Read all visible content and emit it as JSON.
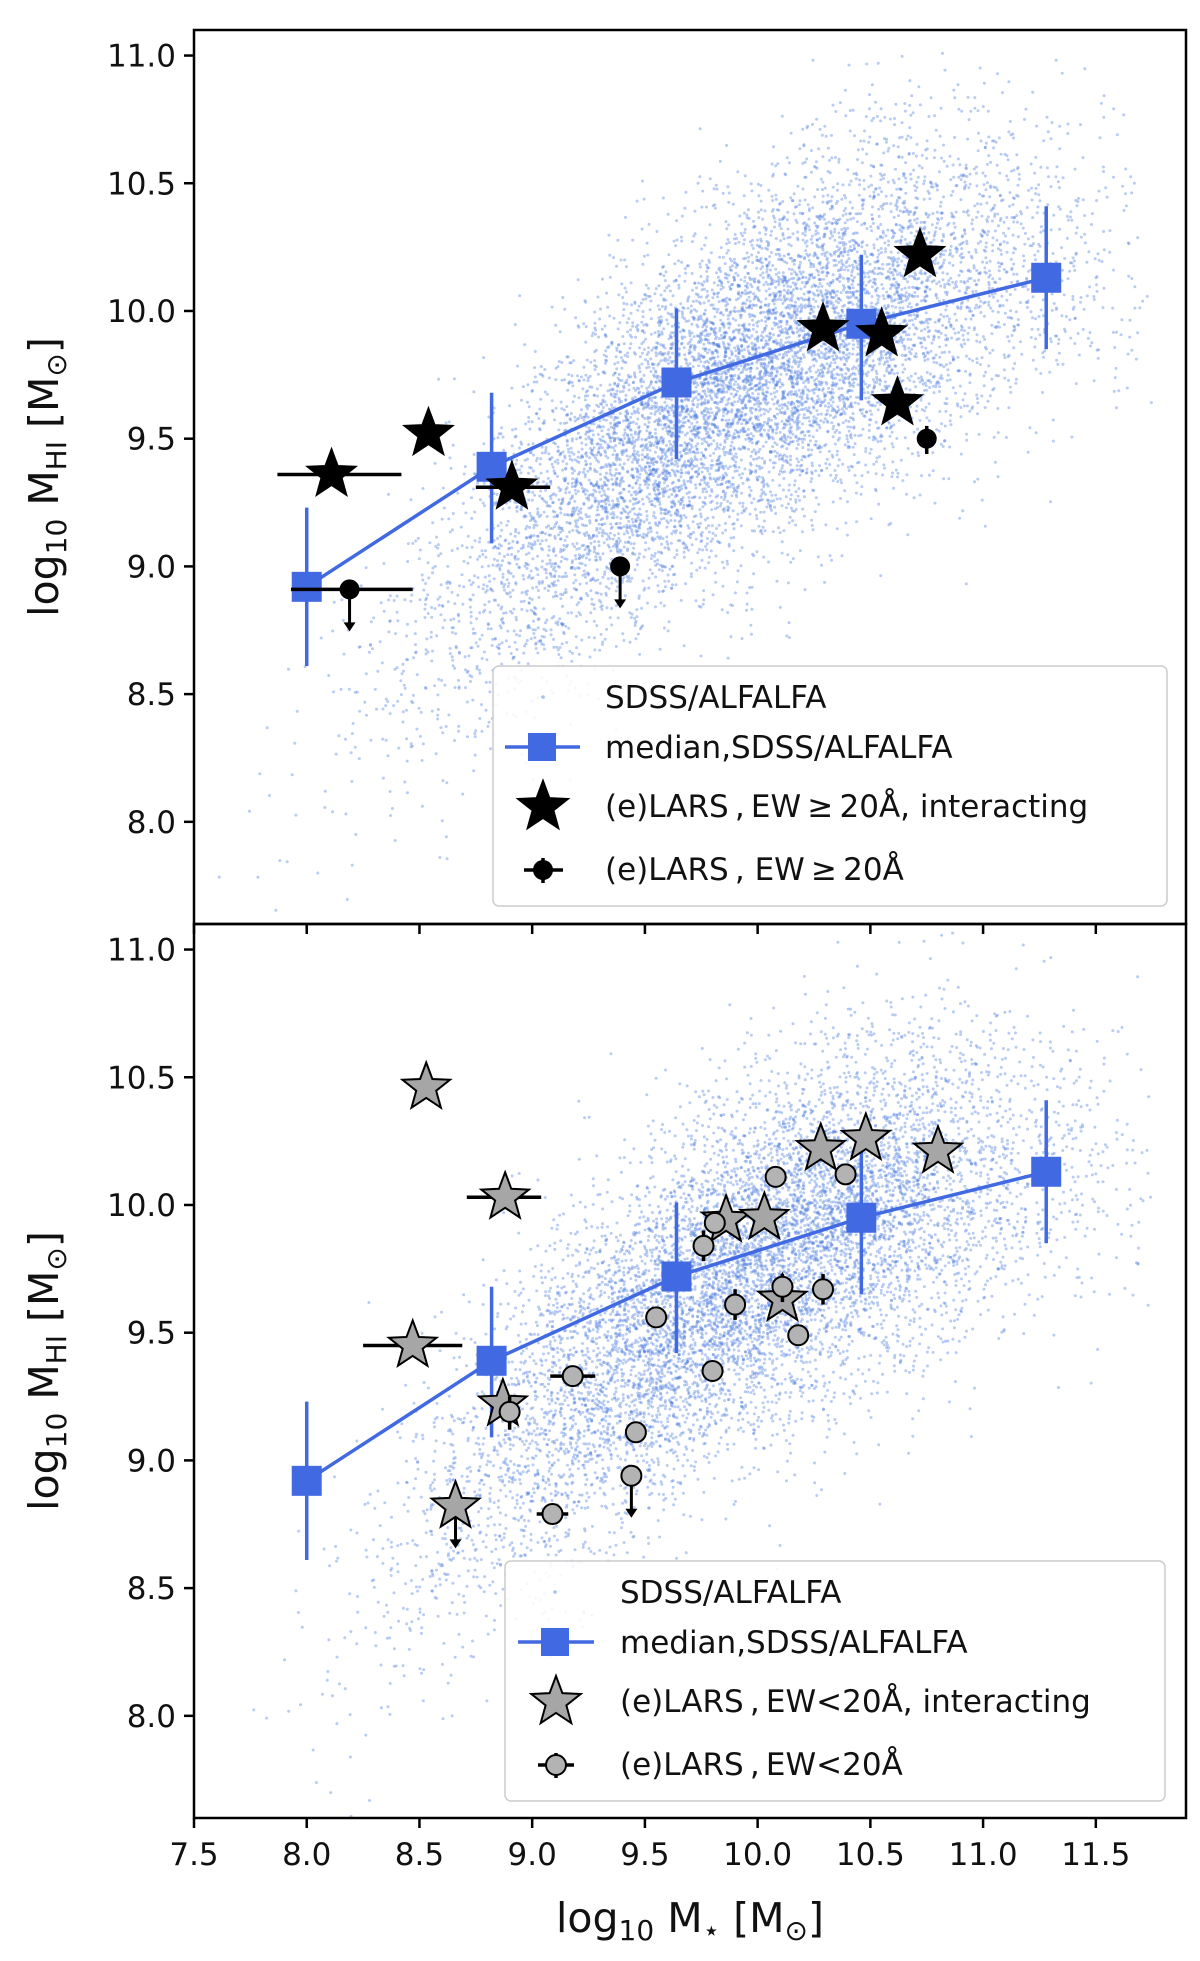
{
  "chart_data": [
    {
      "type": "scatter",
      "panel": "top",
      "xlim": [
        7.5,
        11.9
      ],
      "ylim": [
        7.6,
        11.1
      ],
      "xticks": [
        7.5,
        8.0,
        8.5,
        9.0,
        9.5,
        10.0,
        10.5,
        11.0,
        11.5
      ],
      "yticks": [
        8.0,
        8.5,
        9.0,
        9.5,
        10.0,
        10.5,
        11.0
      ],
      "ytick_labels": [
        "8.0",
        "8.5",
        "9.0",
        "9.5",
        "10.0",
        "10.5",
        "11.0"
      ],
      "ylabel": {
        "main": "log",
        "sub1": "10",
        "mid": " M",
        "sub2": "HI",
        "unit": " [M",
        "unit_sub": "⊙",
        "close": "]"
      },
      "legend": {
        "position": "lower-right",
        "entries": [
          {
            "label": "SDSS/ALFALFA",
            "marker": "dot"
          },
          {
            "label": "median,SDSS/ALFALFA",
            "marker": "square-line"
          },
          {
            "label": "(e)LARS , EW ≥ 20Å,  interacting",
            "marker": "star"
          },
          {
            "label": "(e)LARS , EW ≥ 20Å",
            "marker": "circle-errorbar"
          }
        ]
      },
      "series": [
        {
          "name": "SDSS/ALFALFA",
          "kind": "background-cloud",
          "color": "#4f7fdf",
          "n_points": 9000
        },
        {
          "name": "median,SDSS/ALFALFA",
          "color": "#4169e1",
          "x": [
            8.0,
            8.82,
            9.64,
            10.46,
            11.28
          ],
          "y": [
            8.92,
            9.39,
            9.72,
            9.95,
            10.13
          ],
          "yerr_low": [
            8.61,
            9.09,
            9.42,
            9.65,
            9.85
          ],
          "yerr_high": [
            9.23,
            9.68,
            10.01,
            10.22,
            10.41
          ]
        },
        {
          "name": "(e)LARS, EW ≥ 20Å, interacting",
          "marker": "star",
          "color": "#000000",
          "points": [
            {
              "x": 8.11,
              "y": 9.36,
              "xerr": [
                7.87,
                8.42
              ]
            },
            {
              "x": 8.54,
              "y": 9.52
            },
            {
              "x": 8.91,
              "y": 9.31,
              "xerr": [
                8.75,
                9.08
              ]
            },
            {
              "x": 10.29,
              "y": 9.93
            },
            {
              "x": 10.55,
              "y": 9.91
            },
            {
              "x": 10.62,
              "y": 9.64
            },
            {
              "x": 10.72,
              "y": 10.22
            }
          ]
        },
        {
          "name": "(e)LARS, EW ≥ 20Å",
          "marker": "circle",
          "color": "#000000",
          "points": [
            {
              "x": 8.19,
              "y": 8.91,
              "xerr": [
                7.93,
                8.47
              ],
              "upper_limit": true
            },
            {
              "x": 9.39,
              "y": 9.0,
              "upper_limit": true
            },
            {
              "x": 10.75,
              "y": 9.5,
              "yerr": [
                9.44,
                9.55
              ]
            }
          ]
        }
      ]
    },
    {
      "type": "scatter",
      "panel": "bottom",
      "xlim": [
        7.5,
        11.9
      ],
      "ylim": [
        7.6,
        11.1
      ],
      "xticks": [
        7.5,
        8.0,
        8.5,
        9.0,
        9.5,
        10.0,
        10.5,
        11.0,
        11.5
      ],
      "xtick_labels": [
        "7.5",
        "8.0",
        "8.5",
        "9.0",
        "9.5",
        "10.0",
        "10.5",
        "11.0",
        "11.5"
      ],
      "yticks": [
        8.0,
        8.5,
        9.0,
        9.5,
        10.0,
        10.5,
        11.0
      ],
      "ytick_labels": [
        "8.0",
        "8.5",
        "9.0",
        "9.5",
        "10.0",
        "10.5",
        "11.0"
      ],
      "xlabel": {
        "main": "log",
        "sub1": "10",
        "mid": " M",
        "sub2": "⋆",
        "unit": "  [M",
        "unit_sub": "⊙",
        "close": "]"
      },
      "ylabel": {
        "main": "log",
        "sub1": "10",
        "mid": " M",
        "sub2": "HI",
        "unit": " [M",
        "unit_sub": "⊙",
        "close": "]"
      },
      "legend": {
        "position": "lower-right",
        "entries": [
          {
            "label": "SDSS/ALFALFA",
            "marker": "dot"
          },
          {
            "label": "median,SDSS/ALFALFA",
            "marker": "square-line"
          },
          {
            "label": "(e)LARS , EW<20Å,  interacting",
            "marker": "star"
          },
          {
            "label": "(e)LARS , EW<20Å",
            "marker": "circle-errorbar"
          }
        ]
      },
      "series": [
        {
          "name": "SDSS/ALFALFA",
          "kind": "background-cloud",
          "color": "#4f7fdf",
          "n_points": 9000
        },
        {
          "name": "median,SDSS/ALFALFA",
          "color": "#4169e1",
          "x": [
            8.0,
            8.82,
            9.64,
            10.46,
            11.28
          ],
          "y": [
            8.92,
            9.39,
            9.72,
            9.95,
            10.13
          ],
          "yerr_low": [
            8.61,
            9.09,
            9.42,
            9.65,
            9.85
          ],
          "yerr_high": [
            9.23,
            9.68,
            10.01,
            10.22,
            10.41
          ]
        },
        {
          "name": "(e)LARS, EW<20Å, interacting",
          "marker": "star",
          "color": "#a6a6a6",
          "points": [
            {
              "x": 8.53,
              "y": 10.46
            },
            {
              "x": 8.88,
              "y": 10.03,
              "xerr": [
                8.71,
                9.04
              ]
            },
            {
              "x": 8.47,
              "y": 9.45,
              "xerr": [
                8.25,
                8.69
              ]
            },
            {
              "x": 8.87,
              "y": 9.22
            },
            {
              "x": 8.66,
              "y": 8.82,
              "upper_limit": true
            },
            {
              "x": 9.86,
              "y": 9.94
            },
            {
              "x": 10.03,
              "y": 9.95
            },
            {
              "x": 10.28,
              "y": 10.22
            },
            {
              "x": 10.48,
              "y": 10.26
            },
            {
              "x": 10.8,
              "y": 10.21
            },
            {
              "x": 10.11,
              "y": 9.63
            }
          ]
        },
        {
          "name": "(e)LARS, EW<20Å",
          "marker": "circle",
          "color": "#b3b3b3",
          "points": [
            {
              "x": 9.76,
              "y": 9.84,
              "yerr": [
                9.78,
                9.9
              ]
            },
            {
              "x": 9.81,
              "y": 9.93
            },
            {
              "x": 10.08,
              "y": 10.11
            },
            {
              "x": 10.39,
              "y": 10.12
            },
            {
              "x": 9.55,
              "y": 9.56
            },
            {
              "x": 9.9,
              "y": 9.61,
              "yerr": [
                9.55,
                9.67
              ]
            },
            {
              "x": 10.11,
              "y": 9.68,
              "yerr": [
                9.62,
                9.73
              ]
            },
            {
              "x": 10.29,
              "y": 9.67,
              "yerr": [
                9.61,
                9.73
              ]
            },
            {
              "x": 10.18,
              "y": 9.49
            },
            {
              "x": 9.8,
              "y": 9.35
            },
            {
              "x": 9.18,
              "y": 9.33,
              "xerr": [
                9.08,
                9.28
              ]
            },
            {
              "x": 8.9,
              "y": 9.19,
              "yerr": [
                9.12,
                9.25
              ]
            },
            {
              "x": 9.46,
              "y": 9.11
            },
            {
              "x": 9.44,
              "y": 8.94,
              "upper_limit": true
            },
            {
              "x": 9.09,
              "y": 8.79,
              "xerr": [
                9.02,
                9.16
              ]
            }
          ]
        }
      ]
    }
  ]
}
